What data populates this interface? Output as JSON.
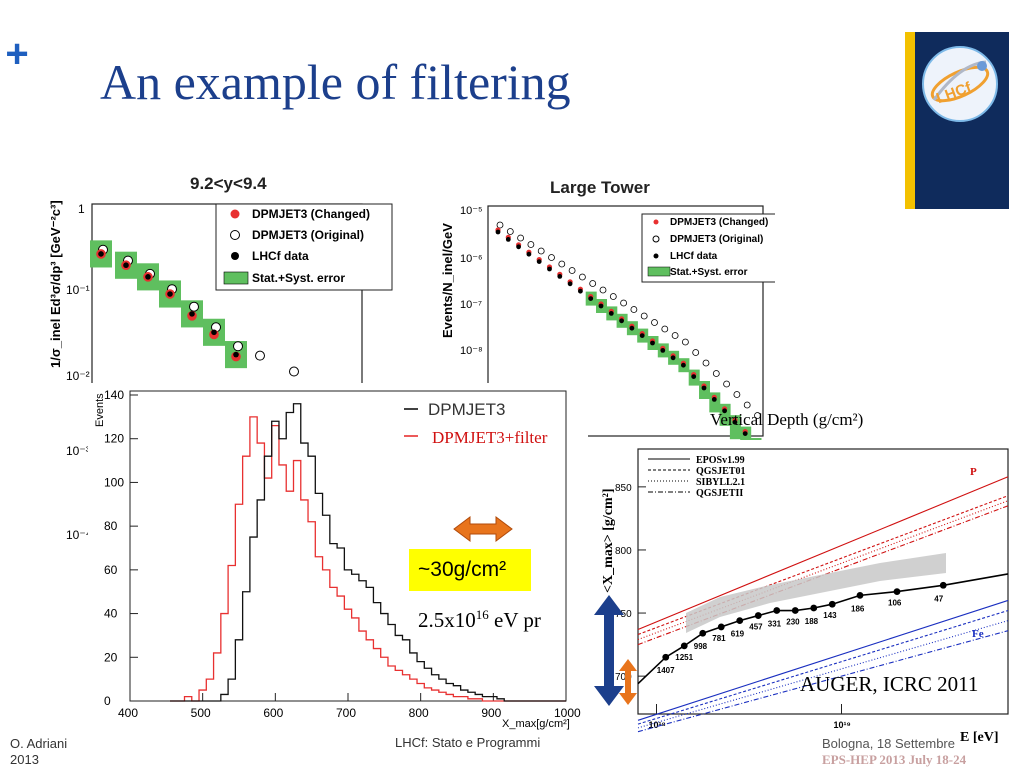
{
  "slide": {
    "plus_mark": "+",
    "title": "An example of filtering",
    "badge_text": "~30g/cm²",
    "proton_label_main": "2.5x10",
    "proton_label_sup": "16",
    "proton_label_tail": " eV pr",
    "auger_label": "AUGER, ICRC 2011",
    "vertical_depth_label": "Vertical Depth (g/cm²)",
    "logo_text": "LHCf",
    "colors": {
      "title": "#1c3f8c",
      "yellow_bar": "#f3c100",
      "navy_bar": "#0f2b5c",
      "badge": "#ffff00",
      "arrow_orange": "#e8741c",
      "arrow_blue": "#1c3f8c"
    }
  },
  "footer": {
    "author": "O. Adriani",
    "year": "2013",
    "center": "LHCf: Stato e Programmi",
    "right_line1": "Bologna, 18 Settembre",
    "right_line2": "EPS-HEP 2013 July 18-24"
  },
  "chart_data": [
    {
      "type": "scatter",
      "title": "9.2<y<9.4",
      "ylabel": "1/σ_inel Ed³σ/dp³ [GeV⁻²c³]",
      "y_scale": "log",
      "y_ticks": [
        "1",
        "10⁻¹",
        "10⁻²",
        "10⁻³",
        "10⁻⁴"
      ],
      "legend": [
        "DPMJET3 (Changed)",
        "DPMJET3 (Original)",
        "LHCf data",
        "Stat.+Syst. error"
      ],
      "series": [
        {
          "name": "DPMJET3 (Changed)",
          "values": [
            0.3,
            0.22,
            0.16,
            0.1,
            0.055,
            0.033,
            0.018
          ]
        },
        {
          "name": "DPMJET3 (Original)",
          "values": [
            0.31,
            0.23,
            0.16,
            0.105,
            0.065,
            0.037,
            0.022,
            0.017,
            0.011
          ]
        },
        {
          "name": "LHCf data",
          "values": [
            0.3,
            0.22,
            0.16,
            0.1,
            0.058,
            0.035,
            0.019
          ]
        }
      ]
    },
    {
      "type": "scatter",
      "title": "Large Tower",
      "ylabel": "Events/N_inel/GeV",
      "y_scale": "log",
      "y_ticks": [
        "10⁻⁵",
        "10⁻⁶",
        "10⁻⁷",
        "10⁻⁸"
      ],
      "legend": [
        "DPMJET3 (Changed)",
        "DPMJET3 (Original)",
        "LHCf data",
        "Stat.+Syst. error"
      ]
    },
    {
      "type": "line",
      "title": "",
      "xlabel": "X_max[g/cm²]",
      "ylabel": "Events",
      "x_ticks": [
        "400",
        "500",
        "600",
        "700",
        "800",
        "900",
        "1000"
      ],
      "y_ticks": [
        "0",
        "20",
        "40",
        "60",
        "80",
        "100",
        "120",
        "140"
      ],
      "xlim": [
        400,
        1000
      ],
      "ylim": [
        0,
        140
      ],
      "x": [
        460,
        470,
        480,
        490,
        500,
        510,
        520,
        530,
        540,
        550,
        560,
        570,
        580,
        590,
        600,
        610,
        620,
        630,
        640,
        650,
        660,
        670,
        680,
        690,
        700,
        710,
        720,
        730,
        740,
        750,
        760,
        770,
        780,
        790,
        800,
        810,
        820,
        830,
        840,
        850,
        860,
        870,
        880,
        890,
        900,
        910,
        920
      ],
      "series": [
        {
          "name": "DPMJET3",
          "values": [
            0,
            0,
            0,
            0,
            0,
            0,
            0,
            3,
            10,
            28,
            50,
            75,
            92,
            112,
            128,
            120,
            132,
            136,
            118,
            112,
            95,
            85,
            72,
            70,
            60,
            58,
            55,
            52,
            45,
            40,
            35,
            30,
            28,
            22,
            18,
            15,
            12,
            10,
            8,
            7,
            5,
            4,
            3,
            2,
            2,
            1,
            0
          ]
        },
        {
          "name": "DPMJET3+filter",
          "values": [
            0,
            0,
            2,
            0,
            5,
            10,
            22,
            40,
            62,
            90,
            112,
            130,
            118,
            102,
            126,
            108,
            96,
            110,
            92,
            82,
            66,
            60,
            52,
            48,
            42,
            38,
            32,
            28,
            24,
            20,
            16,
            14,
            12,
            10,
            8,
            6,
            5,
            4,
            3,
            2,
            2,
            1,
            1,
            0,
            0,
            0,
            0
          ]
        }
      ]
    },
    {
      "type": "line",
      "title": "",
      "xlabel": "E [eV]",
      "ylabel": "<X_max> [g/cm²]",
      "x_ticks": [
        "10¹⁸",
        "10¹⁹"
      ],
      "y_ticks": [
        "700",
        "750",
        "800",
        "850"
      ],
      "legend": [
        "EPOSv1.99",
        "QGSJET01",
        "SIBYLL2.1",
        "QGSJETII"
      ],
      "annotations": [
        "P",
        "Fe"
      ],
      "series": [
        {
          "name": "AUGER data",
          "x_log10": [
            18.05,
            18.15,
            18.25,
            18.35,
            18.45,
            18.55,
            18.65,
            18.75,
            18.85,
            18.95,
            19.1,
            19.3,
            19.55
          ],
          "values": [
            715,
            724,
            734,
            739,
            744,
            748,
            752,
            752,
            754,
            757,
            764,
            767,
            772
          ],
          "labels": [
            "1407",
            "1251",
            "998",
            "781",
            "619",
            "457",
            "331",
            "230",
            "188",
            "143",
            "186",
            "106",
            "47"
          ]
        }
      ]
    }
  ]
}
